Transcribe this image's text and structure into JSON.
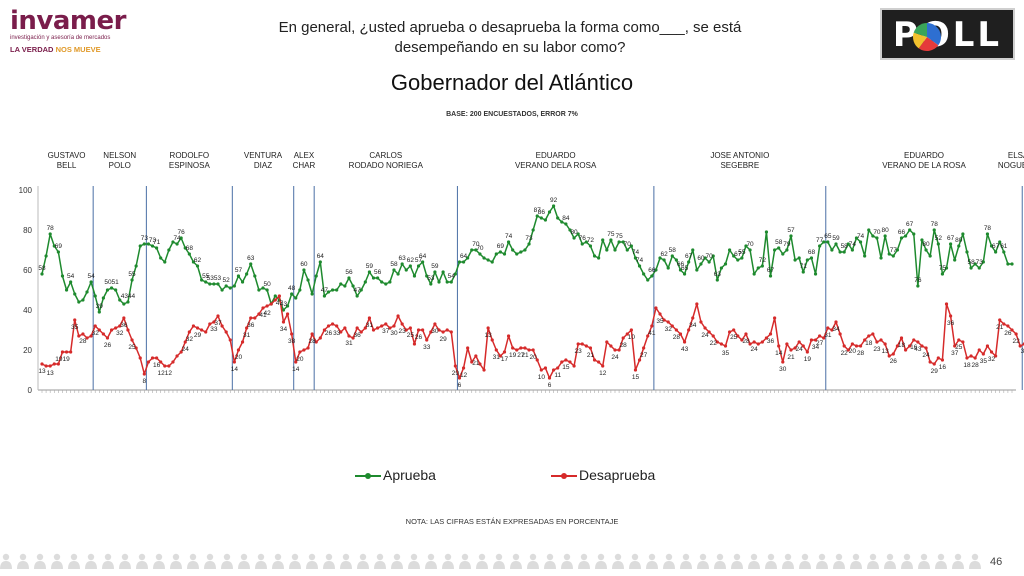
{
  "logo_left": {
    "brand": "invamer",
    "subtitle": "investigación y asesoría de mercados",
    "tagline_a": "LA VERDAD",
    "tagline_b": "NOS MUEVE"
  },
  "question": "En general, ¿usted aprueba o desaprueba la forma como___, se está desempeñando en su labor como?",
  "logo_right": {
    "text": "POLL",
    "colors": [
      "#2e6fd1",
      "#e53b3b",
      "#f2c12e",
      "#3aa55a"
    ]
  },
  "chart_data": {
    "type": "line",
    "title": "Gobernador del Atlántico",
    "subtitle": "BASE: 200 ENCUESTADOS, ERROR 7%",
    "ylim": [
      0,
      100
    ],
    "yticks": [
      0,
      20,
      40,
      60,
      80,
      100
    ],
    "grid": false,
    "legend_placement": "bottom-center",
    "note": "NOTA: LAS CIFRAS ESTÁN EXPRESADAS EN PORCENTAJE",
    "periods": [
      {
        "label": "GUSTAVO\nBELL",
        "start": 0
      },
      {
        "label": "NELSON\nPOLO",
        "start": 13
      },
      {
        "label": "RODOLFO\nESPINOSA",
        "start": 26
      },
      {
        "label": "VENTURA\nDIAZ",
        "start": 47
      },
      {
        "label": "ALEX\nCHAR",
        "start": 62
      },
      {
        "label": "CARLOS\nRODADO NORIEGA",
        "start": 67
      },
      {
        "label": "EDUARDO\nVERANO DELA ROSA",
        "start": 102
      },
      {
        "label": "JOSE ANTONIO\nSEGEBRE",
        "start": 150
      },
      {
        "label": "EDUARDO\nVERANO DE LA ROSA",
        "start": 192
      },
      {
        "label": "ELSA\nNOGUERA",
        "start": 240
      }
    ],
    "series": [
      {
        "name": "Aprueba",
        "color": "#1e8a2e",
        "values": [
          58,
          67,
          78,
          72,
          69,
          57,
          50,
          54,
          48,
          44,
          45,
          49,
          54,
          47,
          39,
          46,
          50,
          51,
          50,
          45,
          43,
          44,
          55,
          62,
          72,
          73,
          73,
          72,
          71,
          66,
          64,
          70,
          74,
          73,
          76,
          71,
          68,
          64,
          62,
          55,
          54,
          53,
          53,
          53,
          50,
          52,
          51,
          52,
          57,
          54,
          58,
          63,
          57,
          50,
          51,
          50,
          43,
          47,
          45,
          40,
          42,
          48,
          46,
          50,
          60,
          55,
          48,
          57,
          64,
          47,
          49,
          50,
          50,
          53,
          52,
          56,
          52,
          47,
          50,
          54,
          59,
          56,
          56,
          54,
          53,
          54,
          60,
          58,
          63,
          60,
          62,
          57,
          62,
          64,
          57,
          53,
          59,
          54,
          59,
          54,
          54,
          58,
          64,
          64,
          66,
          70,
          70,
          68,
          66,
          65,
          64,
          68,
          69,
          68,
          74,
          70,
          68,
          69,
          70,
          73,
          80,
          87,
          86,
          85,
          89,
          92,
          86,
          84,
          83,
          80,
          76,
          78,
          73,
          74,
          72,
          67,
          66,
          75,
          70,
          75,
          70,
          74,
          74,
          70,
          72,
          66,
          62,
          58,
          55,
          57,
          60,
          66,
          65,
          61,
          67,
          65,
          60,
          58,
          64,
          70,
          60,
          63,
          66,
          64,
          67,
          55,
          61,
          63,
          70,
          67,
          65,
          66,
          72,
          70,
          58,
          61,
          62,
          79,
          57,
          70,
          71,
          68,
          70,
          77,
          65,
          66,
          59,
          65,
          66,
          58,
          72,
          74,
          74,
          70,
          73,
          69,
          69,
          73,
          70,
          76,
          74,
          67,
          80,
          77,
          76,
          66,
          77,
          68,
          67,
          70,
          76,
          77,
          80,
          78,
          52,
          75,
          70,
          67,
          80,
          73,
          58,
          61,
          73,
          65,
          72,
          78,
          69,
          61,
          63,
          61,
          64,
          78,
          72,
          69,
          74,
          69,
          63,
          63
        ]
      },
      {
        "name": "Desaprueba",
        "color": "#d62a2a",
        "values": [
          13,
          12,
          12,
          13,
          13,
          19,
          19,
          19,
          35,
          27,
          28,
          26,
          27,
          32,
          30,
          28,
          26,
          30,
          31,
          32,
          36,
          30,
          25,
          21,
          16,
          8,
          14,
          16,
          16,
          14,
          12,
          12,
          14,
          17,
          19,
          24,
          29,
          32,
          31,
          30,
          29,
          33,
          34,
          37,
          32,
          29,
          25,
          14,
          20,
          24,
          31,
          36,
          36,
          38,
          41,
          42,
          43,
          45,
          47,
          34,
          38,
          28,
          14,
          19,
          20,
          21,
          28,
          24,
          26,
          30,
          32,
          33,
          32,
          29,
          31,
          27,
          26,
          31,
          29,
          31,
          36,
          30,
          31,
          32,
          33,
          31,
          32,
          37,
          33,
          30,
          31,
          23,
          30,
          30,
          25,
          29,
          33,
          30,
          29,
          30,
          29,
          12,
          6,
          11,
          21,
          14,
          17,
          13,
          10,
          31,
          25,
          20,
          17,
          19,
          27,
          21,
          20,
          21,
          21,
          20,
          20,
          15,
          10,
          11,
          6,
          10,
          11,
          14,
          15,
          14,
          12,
          23,
          23,
          22,
          21,
          15,
          14,
          12,
          24,
          22,
          20,
          20,
          26,
          28,
          30,
          10,
          15,
          21,
          27,
          32,
          41,
          38,
          35,
          34,
          32,
          30,
          28,
          24,
          30,
          36,
          43,
          34,
          31,
          29,
          27,
          24,
          23,
          22,
          29,
          30,
          27,
          25,
          28,
          23,
          24,
          23,
          24,
          26,
          28,
          36,
          22,
          14,
          23,
          20,
          21,
          24,
          22,
          19,
          25,
          25,
          27,
          26,
          31,
          30,
          34,
          28,
          22,
          20,
          23,
          22,
          22,
          25,
          27,
          28,
          24,
          25,
          23,
          17,
          18,
          22,
          26,
          20,
          22,
          25,
          24,
          22,
          21,
          14,
          13,
          16,
          15,
          43,
          37,
          22,
          25,
          24,
          16,
          17,
          16,
          20,
          18,
          22,
          19,
          17,
          35,
          33,
          32,
          30,
          28,
          22,
          23,
          25,
          20,
          27,
          30,
          29,
          29,
          21,
          28,
          25,
          32,
          29
        ]
      }
    ],
    "annotations_aprueba": [
      [
        0,
        "58"
      ],
      [
        2,
        "78"
      ],
      [
        4,
        "69"
      ],
      [
        7,
        "54"
      ],
      [
        12,
        "54"
      ],
      [
        14,
        "39"
      ],
      [
        17,
        "5051"
      ],
      [
        21,
        "4344"
      ],
      [
        22,
        "55"
      ],
      [
        25,
        "73"
      ],
      [
        27,
        "73"
      ],
      [
        28,
        "71"
      ],
      [
        33,
        "74"
      ],
      [
        34,
        "76"
      ],
      [
        36,
        "68"
      ],
      [
        38,
        "62"
      ],
      [
        40,
        "55"
      ],
      [
        42,
        "5353"
      ],
      [
        45,
        "52"
      ],
      [
        48,
        "57"
      ],
      [
        51,
        "63"
      ],
      [
        55,
        "50"
      ],
      [
        59,
        "43"
      ],
      [
        61,
        "48"
      ],
      [
        64,
        "60"
      ],
      [
        68,
        "64"
      ],
      [
        69,
        "47"
      ],
      [
        75,
        "56"
      ],
      [
        77,
        "47"
      ],
      [
        80,
        "59"
      ],
      [
        82,
        "56"
      ],
      [
        86,
        "58"
      ],
      [
        88,
        "63"
      ],
      [
        90,
        "62"
      ],
      [
        92,
        "57"
      ],
      [
        93,
        "64"
      ],
      [
        95,
        "53"
      ],
      [
        96,
        "59"
      ],
      [
        100,
        "54"
      ],
      [
        103,
        "64"
      ],
      [
        106,
        "70"
      ],
      [
        107,
        "70"
      ],
      [
        112,
        "69"
      ],
      [
        114,
        "74"
      ],
      [
        119,
        "73"
      ],
      [
        121,
        "87"
      ],
      [
        122,
        "86"
      ],
      [
        125,
        "92"
      ],
      [
        128,
        "84"
      ],
      [
        130,
        "80"
      ],
      [
        132,
        "76"
      ],
      [
        134,
        "72"
      ],
      [
        139,
        "75"
      ],
      [
        141,
        "75"
      ],
      [
        143,
        "70"
      ],
      [
        145,
        "74"
      ],
      [
        146,
        "74"
      ],
      [
        149,
        "66"
      ],
      [
        152,
        "62"
      ],
      [
        154,
        "58"
      ],
      [
        156,
        "66"
      ],
      [
        157,
        "65"
      ],
      [
        158,
        "67"
      ],
      [
        161,
        "60"
      ],
      [
        163,
        "70"
      ],
      [
        165,
        "63"
      ],
      [
        170,
        "67"
      ],
      [
        171,
        "55"
      ],
      [
        173,
        "70"
      ],
      [
        176,
        "72"
      ],
      [
        178,
        "67"
      ],
      [
        180,
        "58"
      ],
      [
        182,
        "79"
      ],
      [
        183,
        "57"
      ],
      [
        186,
        "71"
      ],
      [
        188,
        "68"
      ],
      [
        190,
        "77"
      ],
      [
        192,
        "65"
      ],
      [
        194,
        "59"
      ],
      [
        196,
        "58"
      ],
      [
        198,
        "74"
      ],
      [
        200,
        "74"
      ],
      [
        204,
        "70"
      ],
      [
        206,
        "80"
      ],
      [
        208,
        "77"
      ],
      [
        210,
        "66"
      ],
      [
        212,
        "67"
      ],
      [
        214,
        "76"
      ],
      [
        216,
        "80"
      ],
      [
        218,
        "78"
      ],
      [
        219,
        "52"
      ],
      [
        220,
        "75"
      ],
      [
        222,
        "67"
      ],
      [
        224,
        "80"
      ],
      [
        227,
        "58"
      ],
      [
        229,
        "73"
      ],
      [
        231,
        "78"
      ],
      [
        233,
        "67"
      ],
      [
        235,
        "61"
      ],
      [
        238,
        "78"
      ],
      [
        240,
        "69"
      ],
      [
        242,
        "74"
      ],
      [
        243,
        "70"
      ],
      [
        244,
        "63"
      ],
      [
        246,
        "63"
      ]
    ],
    "annotations_desaprueba": [
      [
        0,
        "13"
      ],
      [
        2,
        "13"
      ],
      [
        5,
        "1919"
      ],
      [
        8,
        "35"
      ],
      [
        10,
        "28"
      ],
      [
        13,
        "32"
      ],
      [
        16,
        "26"
      ],
      [
        19,
        "32"
      ],
      [
        20,
        "36"
      ],
      [
        22,
        "25"
      ],
      [
        25,
        "8"
      ],
      [
        28,
        "16"
      ],
      [
        30,
        "1212"
      ],
      [
        35,
        "24"
      ],
      [
        36,
        "32"
      ],
      [
        38,
        "29"
      ],
      [
        42,
        "33"
      ],
      [
        43,
        "37"
      ],
      [
        47,
        "14"
      ],
      [
        48,
        "20"
      ],
      [
        50,
        "31"
      ],
      [
        51,
        "36"
      ],
      [
        54,
        "41"
      ],
      [
        55,
        "42"
      ],
      [
        58,
        "47"
      ],
      [
        59,
        "34"
      ],
      [
        61,
        "38"
      ],
      [
        62,
        "14"
      ],
      [
        63,
        "20"
      ],
      [
        66,
        "28"
      ],
      [
        70,
        "26"
      ],
      [
        72,
        "33"
      ],
      [
        75,
        "31"
      ],
      [
        77,
        "36"
      ],
      [
        80,
        "31"
      ],
      [
        84,
        "37"
      ],
      [
        86,
        "30"
      ],
      [
        88,
        "23"
      ],
      [
        90,
        "25"
      ],
      [
        92,
        "26"
      ],
      [
        94,
        "33"
      ],
      [
        96,
        "30"
      ],
      [
        98,
        "29"
      ],
      [
        101,
        "29"
      ],
      [
        102,
        "6"
      ],
      [
        103,
        "12"
      ],
      [
        106,
        "21"
      ],
      [
        109,
        "13"
      ],
      [
        111,
        "31"
      ],
      [
        113,
        "17"
      ],
      [
        115,
        "19"
      ],
      [
        117,
        "27"
      ],
      [
        118,
        "21"
      ],
      [
        120,
        "20"
      ],
      [
        122,
        "10"
      ],
      [
        124,
        "6"
      ],
      [
        126,
        "11"
      ],
      [
        128,
        "15"
      ],
      [
        131,
        "23"
      ],
      [
        134,
        "21"
      ],
      [
        137,
        "12"
      ],
      [
        140,
        "24"
      ],
      [
        142,
        "28"
      ],
      [
        144,
        "10"
      ],
      [
        145,
        "15"
      ],
      [
        147,
        "27"
      ],
      [
        149,
        "41"
      ],
      [
        151,
        "35"
      ],
      [
        153,
        "32"
      ],
      [
        155,
        "28"
      ],
      [
        157,
        "43"
      ],
      [
        159,
        "34"
      ],
      [
        162,
        "24"
      ],
      [
        164,
        "22"
      ],
      [
        167,
        "35"
      ],
      [
        169,
        "25"
      ],
      [
        172,
        "28"
      ],
      [
        174,
        "24"
      ],
      [
        178,
        "36"
      ],
      [
        180,
        "14"
      ],
      [
        181,
        "30"
      ],
      [
        183,
        "21"
      ],
      [
        185,
        "24"
      ],
      [
        187,
        "19"
      ],
      [
        189,
        "34"
      ],
      [
        190,
        "27"
      ],
      [
        192,
        "31"
      ],
      [
        194,
        "34"
      ],
      [
        196,
        "22"
      ],
      [
        198,
        "20"
      ],
      [
        200,
        "28"
      ],
      [
        202,
        "18"
      ],
      [
        204,
        "23"
      ],
      [
        206,
        "13"
      ],
      [
        208,
        "26"
      ],
      [
        210,
        "18"
      ],
      [
        213,
        "16"
      ],
      [
        214,
        "43"
      ],
      [
        216,
        "24"
      ],
      [
        218,
        "29"
      ],
      [
        220,
        "16"
      ],
      [
        222,
        "36"
      ],
      [
        223,
        "37"
      ],
      [
        224,
        "25"
      ],
      [
        226,
        "18"
      ],
      [
        228,
        "28"
      ],
      [
        230,
        "35"
      ],
      [
        232,
        "32"
      ],
      [
        234,
        "21"
      ],
      [
        236,
        "26"
      ],
      [
        238,
        "22"
      ],
      [
        240,
        "30"
      ],
      [
        242,
        "22"
      ],
      [
        244,
        "30"
      ],
      [
        246,
        "29"
      ]
    ]
  },
  "footer": {
    "page_number": "46"
  }
}
